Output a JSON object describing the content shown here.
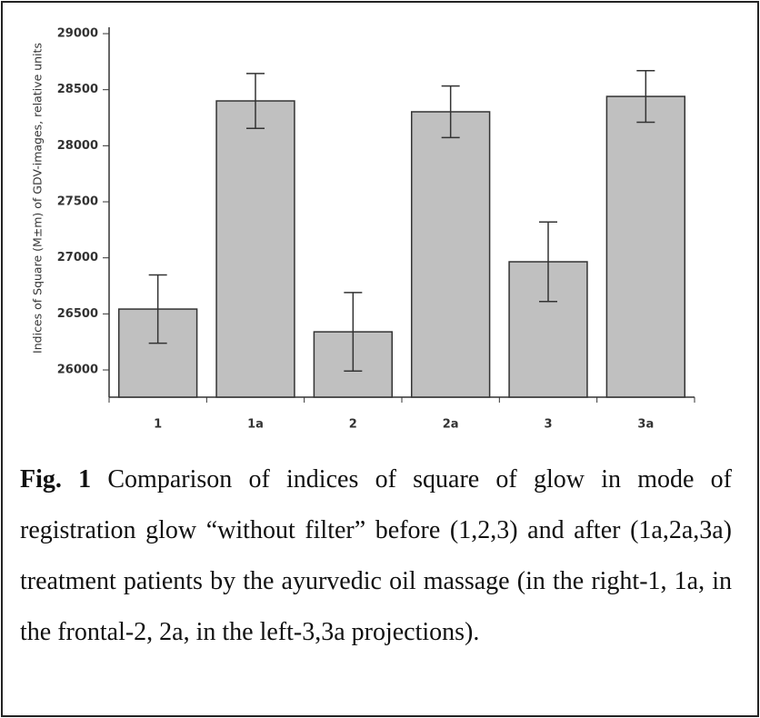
{
  "chart_data": {
    "type": "bar",
    "y_label": "Indices of Square (M±m) of GDV-images, relative units",
    "categories": [
      "1",
      "1a",
      "2",
      "2a",
      "3",
      "3a"
    ],
    "values": [
      26543,
      28400,
      26340,
      28303,
      26965,
      28440
    ],
    "errors": [
      305,
      245,
      350,
      230,
      355,
      230
    ],
    "color": "#c0c0c0",
    "ylim": [
      25757,
      29057
    ],
    "yticks": [
      26000,
      26500,
      27000,
      27500,
      28000,
      28500,
      29000
    ],
    "grid": false
  },
  "caption": {
    "label": "Fig. 1",
    "text": "Comparison of indices of square of glow in mode of registration glow “without filter” before (1,2,3) and after (1a,2a,3a) treatment patients by the ayurvedic oil massage (in the right-1, 1a, in the frontal-2, 2a, in the left-3,3a projections)."
  }
}
